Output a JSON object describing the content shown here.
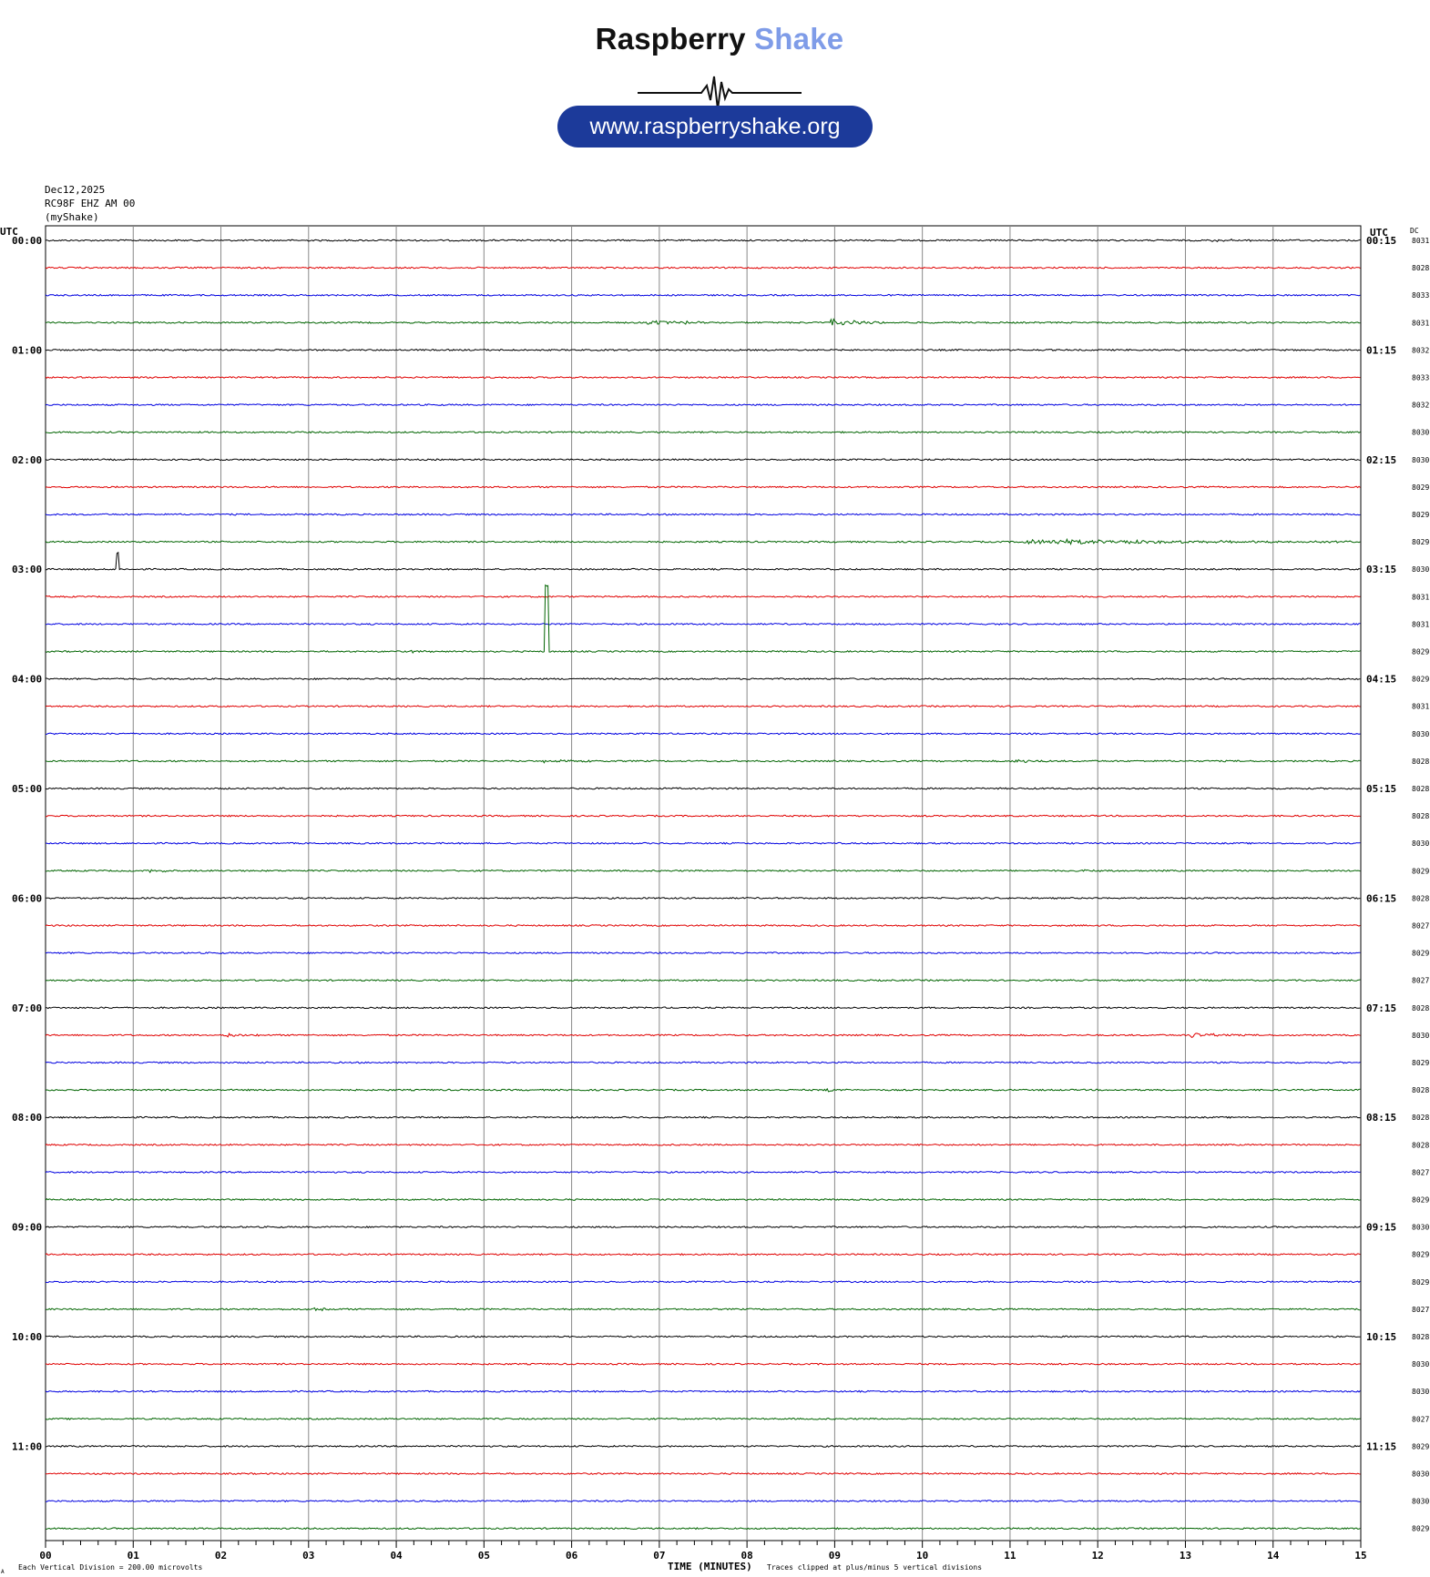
{
  "logo": {
    "brand_part1": "Raspberry",
    "brand_part2": "Shake",
    "url": "www.raspberryshake.org",
    "brand_color": "#111111",
    "accent_color": "#7f9ce8",
    "pill_color": "#1c3a9a"
  },
  "header": {
    "date": "Dec12,2025",
    "station": "RC98F EHZ AM 00",
    "network": "(myShake)"
  },
  "chart_data": {
    "type": "line",
    "title": "",
    "left_axis_header": "UTC",
    "right_axis_header": "UTC",
    "dc_header": "DC",
    "xlabel": "TIME (MINUTES)",
    "xlim": [
      0,
      15
    ],
    "x_tick_labels": [
      "00",
      "01",
      "02",
      "03",
      "04",
      "05",
      "06",
      "07",
      "08",
      "09",
      "10",
      "11",
      "12",
      "13",
      "14",
      "15"
    ],
    "left_labels": [
      "00:00",
      "01:00",
      "02:00",
      "03:00",
      "04:00",
      "05:00",
      "06:00",
      "07:00",
      "08:00",
      "09:00",
      "10:00",
      "11:00"
    ],
    "right_labels": [
      "00:15",
      "01:15",
      "02:15",
      "03:15",
      "04:15",
      "05:15",
      "06:15",
      "07:15",
      "08:15",
      "09:15",
      "10:15",
      "11:15"
    ],
    "trace_colors": [
      "#000000",
      "#e00000",
      "#0000e0",
      "#006400"
    ],
    "dc_offsets": [
      "8031",
      "8028",
      "8033",
      "8031",
      "8032",
      "8033",
      "8032",
      "8030",
      "8030",
      "8029",
      "8029",
      "8029",
      "8030",
      "8031",
      "8031",
      "8029",
      "8029",
      "8031",
      "8030",
      "8028",
      "8028",
      "8028",
      "8030",
      "8029",
      "8028",
      "8027",
      "8029",
      "8027",
      "8028",
      "8030",
      "8029",
      "8028",
      "8028",
      "8028",
      "8027",
      "8029",
      "8030",
      "8029",
      "8029",
      "8027",
      "8028",
      "8030",
      "8030",
      "8027",
      "8029",
      "8030",
      "8030",
      "8029"
    ],
    "events": [
      {
        "row": 0,
        "minute": 13.3,
        "amp": 0.12,
        "dur": 1.4
      },
      {
        "row": 3,
        "minute": 6.9,
        "amp": 0.3,
        "dur": 0.9
      },
      {
        "row": 3,
        "minute": 9.0,
        "amp": 0.35,
        "dur": 0.6
      },
      {
        "row": 11,
        "minute": 11.2,
        "amp": 0.3,
        "dur": 3.8
      },
      {
        "row": 12,
        "minute": 0.82,
        "amp": -0.6,
        "dur": 0.05
      },
      {
        "row": 14,
        "minute": 5.5,
        "amp": 0.12,
        "dur": 0.4
      },
      {
        "row": 15,
        "minute": 4.2,
        "amp": 0.12,
        "dur": 0.2
      },
      {
        "row": 15,
        "minute": 5.72,
        "amp": -3.4,
        "dur": 0.08
      },
      {
        "row": 15,
        "minute": 5.72,
        "amp": 1.0,
        "dur": 0.1
      },
      {
        "row": 19,
        "minute": 5.7,
        "amp": 0.2,
        "dur": 0.8
      },
      {
        "row": 19,
        "minute": 11.1,
        "amp": 0.2,
        "dur": 0.4
      },
      {
        "row": 23,
        "minute": 1.2,
        "amp": 0.2,
        "dur": 0.4
      },
      {
        "row": 23,
        "minute": 11.9,
        "amp": 0.15,
        "dur": 0.4
      },
      {
        "row": 29,
        "minute": 2.1,
        "amp": 0.22,
        "dur": 0.4
      },
      {
        "row": 29,
        "minute": 13.1,
        "amp": 0.3,
        "dur": 0.5
      },
      {
        "row": 31,
        "minute": 8.95,
        "amp": 0.15,
        "dur": 0.4
      },
      {
        "row": 39,
        "minute": 3.1,
        "amp": 0.18,
        "dur": 0.3
      }
    ],
    "footnotes": {
      "scale": "Each Vertical Division =  200.00 microvolts",
      "clipping": "Traces clipped at plus/minus 5 vertical divisions",
      "corner_mark": "A"
    }
  }
}
